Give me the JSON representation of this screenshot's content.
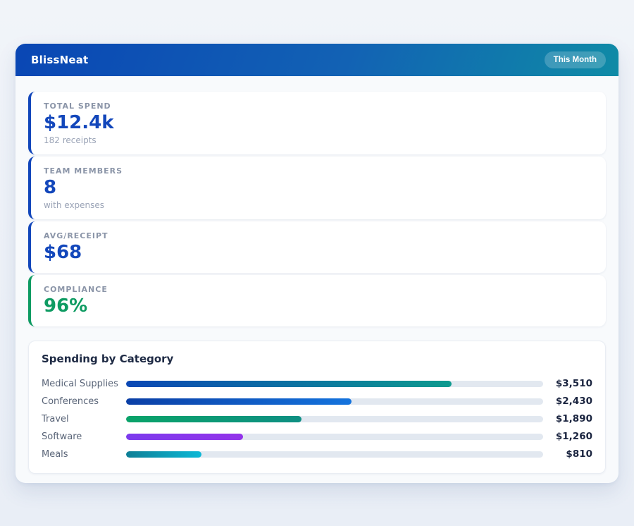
{
  "header": {
    "app_name": "BlissNeat",
    "period_badge": "This Month",
    "gradient_start": "#0a46b4",
    "gradient_end": "#0f8ba6"
  },
  "stats": [
    {
      "label": "TOTAL SPEND",
      "value": "$12.4k",
      "sub": "182 receipts",
      "accent": "#1347bb"
    },
    {
      "label": "TEAM MEMBERS",
      "value": "8",
      "sub": "with expenses",
      "accent": "#1347bb"
    },
    {
      "label": "AVG/RECEIPT",
      "value": "$68",
      "sub": "",
      "accent": "#1347bb"
    },
    {
      "label": "COMPLIANCE",
      "value": "96%",
      "sub": "",
      "accent": "#0e9b62"
    }
  ],
  "category_section": {
    "title": "Spending by Category",
    "track_color": "#e2e8f0",
    "rows": [
      {
        "label": "Medical Supplies",
        "amount": "$3,510",
        "percent": 78,
        "gradient": [
          "#0b47b5",
          "#0e9b8f"
        ]
      },
      {
        "label": "Conferences",
        "amount": "$2,430",
        "percent": 54,
        "gradient": [
          "#0b3fa6",
          "#1473dd"
        ]
      },
      {
        "label": "Travel",
        "amount": "$1,890",
        "percent": 42,
        "gradient": [
          "#0aa369",
          "#0e8f83"
        ]
      },
      {
        "label": "Software",
        "amount": "$1,260",
        "percent": 28,
        "gradient": [
          "#7c3aed",
          "#9333ea"
        ]
      },
      {
        "label": "Meals",
        "amount": "$810",
        "percent": 18,
        "gradient": [
          "#0e7f96",
          "#0cb8d6"
        ]
      }
    ]
  },
  "chart_data": {
    "type": "bar",
    "title": "Spending by Category",
    "categories": [
      "Medical Supplies",
      "Conferences",
      "Travel",
      "Software",
      "Meals"
    ],
    "values": [
      3510,
      2430,
      1890,
      1260,
      810
    ],
    "value_labels": [
      "$3,510",
      "$2,430",
      "$1,890",
      "$1,260",
      "$810"
    ],
    "xlabel": "",
    "ylabel": "",
    "xlim": [
      0,
      4500
    ],
    "orientation": "horizontal",
    "grid": false,
    "legend": false
  }
}
